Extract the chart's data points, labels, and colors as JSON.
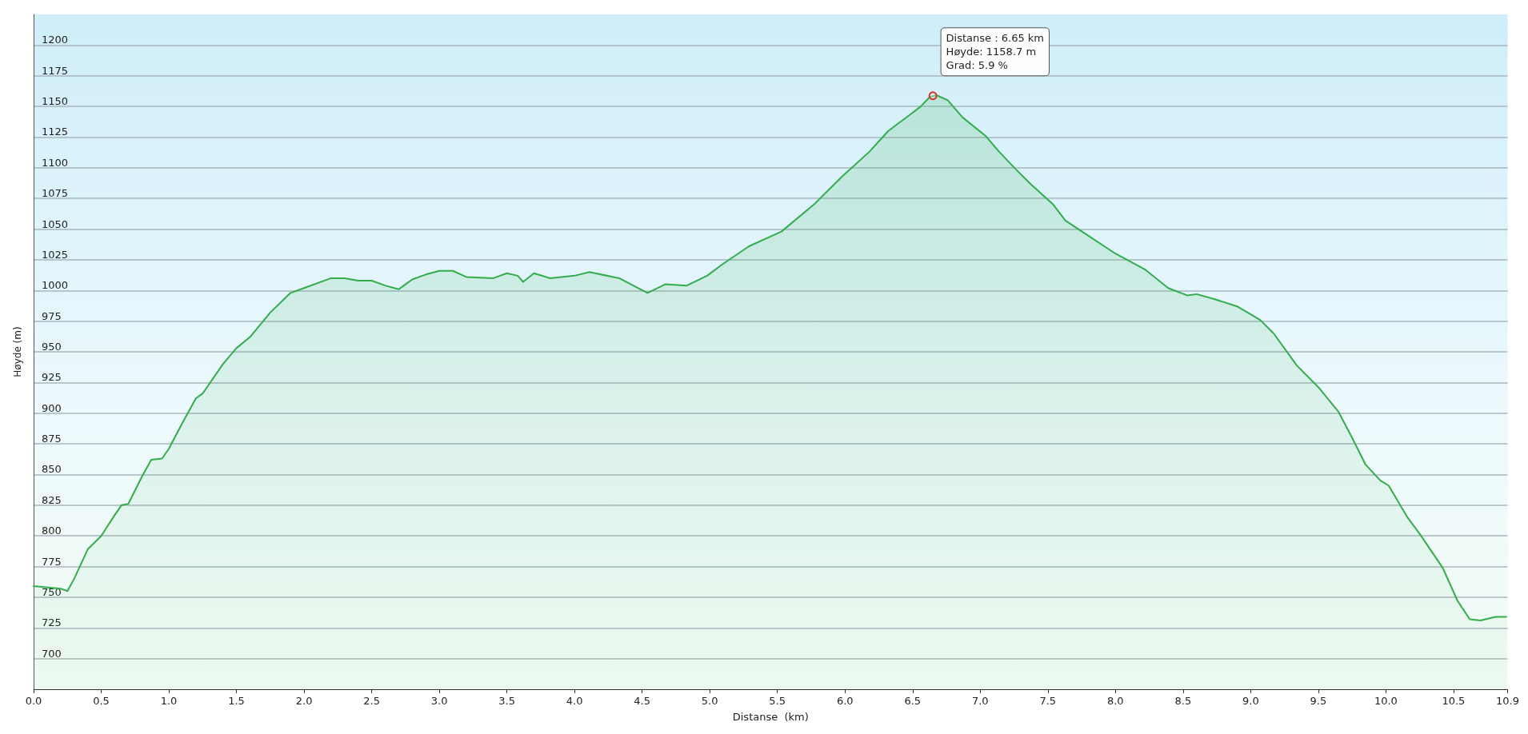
{
  "chart_data": {
    "type": "area",
    "xlabel": "Distanse  (km)",
    "ylabel": "Høyde (m)",
    "x": [
      0,
      0.2,
      0.25,
      0.3,
      0.4,
      0.5,
      0.6,
      0.65,
      0.7,
      0.8,
      0.87,
      0.95,
      1.0,
      1.1,
      1.2,
      1.25,
      1.4,
      1.5,
      1.6,
      1.75,
      1.9,
      2.0,
      2.2,
      2.3,
      2.4,
      2.5,
      2.6,
      2.7,
      2.75,
      2.8,
      2.9,
      3.0,
      3.1,
      3.2,
      3.4,
      3.5,
      3.58,
      3.62,
      3.7,
      3.82,
      4.0,
      4.11,
      4.33,
      4.54,
      4.67,
      4.83,
      4.98,
      5.09,
      5.29,
      5.53,
      5.77,
      5.98,
      6.18,
      6.32,
      6.49,
      6.56,
      6.63,
      6.68,
      6.76,
      6.87,
      7.04,
      7.14,
      7.27,
      7.37,
      7.54,
      7.63,
      7.78,
      8.0,
      8.22,
      8.39,
      8.53,
      8.6,
      8.73,
      8.9,
      9.07,
      9.17,
      9.34,
      9.51,
      9.65,
      9.75,
      9.85,
      9.96,
      10.02,
      10.16,
      10.26,
      10.42,
      10.53,
      10.62,
      10.7,
      10.81,
      10.89
    ],
    "series": [
      {
        "color": "#33ad4c",
        "values": [
          759,
          757,
          755,
          765,
          789,
          800,
          817,
          825,
          826,
          848,
          862,
          863,
          871,
          892,
          912,
          916,
          940,
          953,
          962,
          982,
          998,
          1002,
          1010,
          1010,
          1008,
          1008,
          1004,
          1001,
          1005,
          1009,
          1013,
          1016,
          1016,
          1011,
          1010,
          1014,
          1012,
          1007,
          1014,
          1010,
          1012,
          1015,
          1010,
          998,
          1005,
          1004,
          1012,
          1021,
          1036,
          1048,
          1070,
          1093,
          1113,
          1130,
          1144,
          1150,
          1158,
          1159,
          1155,
          1141,
          1126,
          1113,
          1098,
          1087,
          1070,
          1057,
          1046,
          1030,
          1017,
          1002,
          996,
          997,
          993,
          987,
          976,
          965,
          939,
          920,
          901,
          880,
          858,
          845,
          841,
          815,
          800,
          774,
          747,
          732,
          731,
          734,
          734
        ]
      }
    ],
    "xlim": [
      0,
      10.9
    ],
    "xticks": [
      {
        "value": 0,
        "label": "0.0"
      },
      0.5,
      {
        "value": 1,
        "label": "1.0"
      },
      1.5,
      {
        "value": 2,
        "label": "2.0"
      },
      2.5,
      {
        "value": 3,
        "label": "3.0"
      },
      3.5,
      {
        "value": 4,
        "label": "4.0"
      },
      4.5,
      {
        "value": 5,
        "label": "5.0"
      },
      5.5,
      {
        "value": 6,
        "label": "6.0"
      },
      6.5,
      {
        "value": 7,
        "label": "7.0"
      },
      7.5,
      {
        "value": 8,
        "label": "8.0"
      },
      8.5,
      {
        "value": 9,
        "label": "9.0"
      },
      9.5,
      {
        "value": 10,
        "label": "10.0"
      },
      10.5,
      10.9
    ],
    "ylim": [
      675,
      1225
    ],
    "yticks": [
      700,
      725,
      750,
      775,
      800,
      825,
      850,
      875,
      900,
      925,
      950,
      975,
      1000,
      1025,
      1050,
      1075,
      1100,
      1125,
      1150,
      1175,
      1200
    ],
    "grid": "y",
    "marker": "none",
    "line_style": "solid",
    "annotations": [
      {
        "text": "Distanse : 6.65 km\nHøyde: 1158.7 m\nGrad: 5.9 %",
        "x": 6.65,
        "y": 1158.7
      }
    ]
  }
}
